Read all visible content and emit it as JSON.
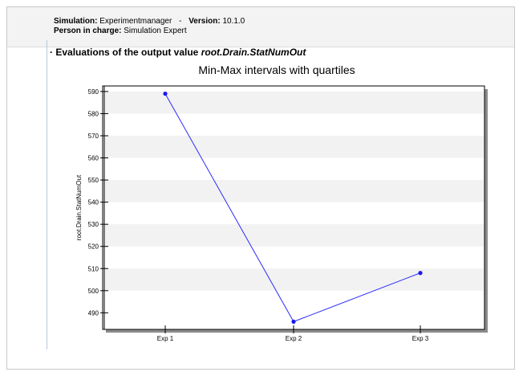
{
  "header": {
    "simulation_label": "Simulation:",
    "simulation_value": "Experimentmanager",
    "separator": "-",
    "version_label": "Version:",
    "version_value": "10.1.0",
    "person_label": "Person in charge:",
    "person_value": "Simulation Expert"
  },
  "section": {
    "bullet": "·",
    "title_prefix": "Evaluations of the output value",
    "variable": "root.Drain.StatNumOut"
  },
  "chart_data": {
    "type": "line",
    "title": "Min-Max intervals with quartiles",
    "xlabel": "",
    "ylabel": "root.Drain.StatNumOut",
    "categories": [
      "Exp 1",
      "Exp 2",
      "Exp 3"
    ],
    "series": [
      {
        "values": [
          589,
          486,
          508
        ],
        "color": "#2a2aff"
      }
    ],
    "ylim": [
      482.5,
      592.5
    ],
    "yticks": [
      490,
      500,
      510,
      520,
      530,
      540,
      550,
      560,
      570,
      580,
      590
    ],
    "grid": true,
    "legend": "none"
  }
}
